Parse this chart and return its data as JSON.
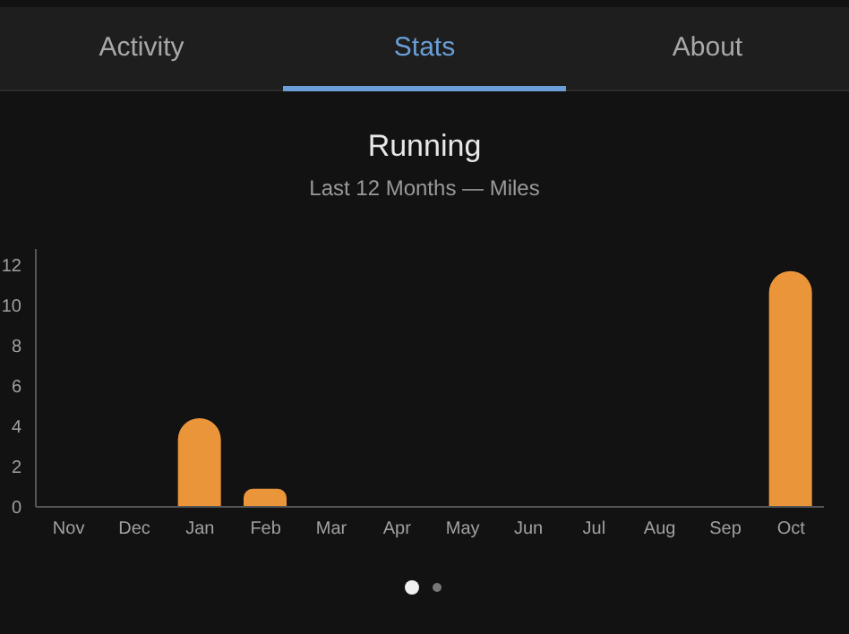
{
  "chart_data": {
    "type": "bar",
    "title": "Running",
    "subtitle": "Last 12 Months — Miles",
    "annotations": [
      "Activity",
      "Stats",
      "About"
    ],
    "categories": [
      "Nov",
      "Dec",
      "Jan",
      "Feb",
      "Mar",
      "Apr",
      "May",
      "Jun",
      "Jul",
      "Aug",
      "Sep",
      "Oct"
    ],
    "values": [
      0,
      0,
      4.4,
      0.9,
      0,
      0,
      0,
      0,
      0,
      0,
      0,
      11.7
    ],
    "color": "#eb953a",
    "ylim": [
      0,
      12.8
    ],
    "yticks": [
      0,
      2,
      4,
      6,
      8,
      10,
      12
    ],
    "grid": false,
    "legend": false
  }
}
